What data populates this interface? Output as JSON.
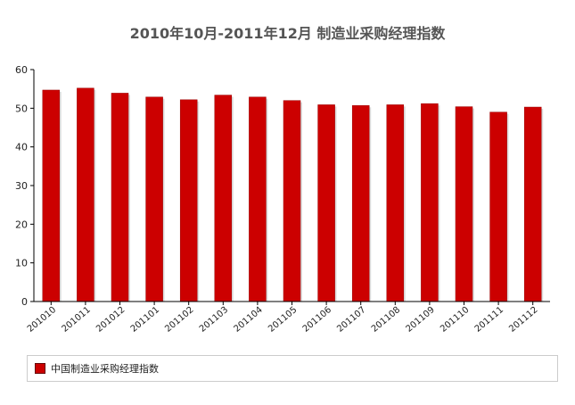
{
  "chart_data": {
    "type": "bar",
    "title": "2010年10月-2011年12月 制造业采购经理指数",
    "xlabel": "",
    "ylabel": "",
    "categories": [
      "201010",
      "201011",
      "201012",
      "201101",
      "201102",
      "201103",
      "201104",
      "201105",
      "201106",
      "201107",
      "201108",
      "201109",
      "201110",
      "201111",
      "201112"
    ],
    "series": [
      {
        "name": "中国制造业采购经理指数",
        "values": [
          54.7,
          55.2,
          53.9,
          52.9,
          52.2,
          53.4,
          52.9,
          52.0,
          50.9,
          50.7,
          50.9,
          51.2,
          50.4,
          49.0,
          50.3
        ]
      }
    ],
    "ylim": [
      0,
      60
    ],
    "yticks": [
      0,
      10,
      20,
      30,
      40,
      50,
      60
    ],
    "grid": false,
    "legend_position": "bottom",
    "bar_color": "#cc0000"
  }
}
